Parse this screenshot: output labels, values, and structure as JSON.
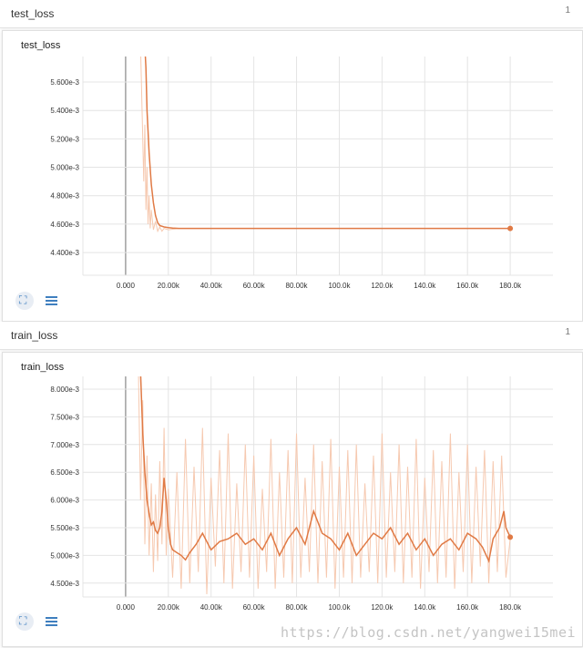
{
  "panels": [
    {
      "title": "test_loss",
      "count": "1",
      "card_title": "test_loss"
    },
    {
      "title": "train_loss",
      "count": "1",
      "card_title": "train_loss"
    }
  ],
  "watermark": "https://blog.csdn.net/yangwei15mei",
  "colors": {
    "line": "#e07a45",
    "raw": "#f6c9b0",
    "grid": "#e4e4e4",
    "axis": "#888888",
    "icon": "#3f7fbf"
  },
  "icons": {
    "fit": "fit-domain-icon",
    "list": "data-selection-list-icon"
  },
  "chart_data": [
    {
      "type": "line",
      "title": "test_loss",
      "xlabel": "",
      "ylabel": "",
      "xlim": [
        -20000,
        200000
      ],
      "ylim": [
        0.00424,
        0.00578
      ],
      "x_ticks": [
        "0.000",
        "20.00k",
        "40.00k",
        "60.00k",
        "80.00k",
        "100.0k",
        "120.0k",
        "140.0k",
        "160.0k",
        "180.0k"
      ],
      "x_tick_values": [
        0,
        20000,
        40000,
        60000,
        80000,
        100000,
        120000,
        140000,
        160000,
        180000
      ],
      "y_ticks": [
        "4.400e-3",
        "4.600e-3",
        "4.800e-3",
        "5.000e-3",
        "5.200e-3",
        "5.400e-3",
        "5.600e-3"
      ],
      "y_tick_values": [
        0.0044,
        0.0046,
        0.0048,
        0.005,
        0.0052,
        0.0054,
        0.0056
      ],
      "grid": true,
      "smoothed": {
        "x": [
          9000,
          9500,
          10000,
          11000,
          12000,
          13000,
          14000,
          15000,
          16000,
          18000,
          20000,
          22000,
          25000,
          30000,
          40000,
          60000,
          80000,
          100000,
          120000,
          140000,
          160000,
          180000
        ],
        "y": [
          0.00585,
          0.0057,
          0.0054,
          0.0051,
          0.00488,
          0.00475,
          0.00466,
          0.00461,
          0.00459,
          0.00458,
          0.004575,
          0.004572,
          0.00457,
          0.00457,
          0.00457,
          0.00457,
          0.00457,
          0.00457,
          0.00457,
          0.00457,
          0.00457,
          0.00457
        ]
      },
      "raw": {
        "x": [
          7000,
          8000,
          8500,
          9000,
          9500,
          10000,
          10500,
          11000,
          11500,
          12000,
          13000,
          14000,
          15000,
          16000,
          17000,
          18000,
          20000,
          25000
        ],
        "y": [
          0.00585,
          0.0052,
          0.0049,
          0.0053,
          0.0047,
          0.005,
          0.0046,
          0.0048,
          0.00457,
          0.0047,
          0.00456,
          0.00462,
          0.00455,
          0.00458,
          0.00455,
          0.00457,
          0.00456,
          0.00457
        ]
      }
    },
    {
      "type": "line",
      "title": "train_loss",
      "xlabel": "",
      "ylabel": "",
      "xlim": [
        -20000,
        200000
      ],
      "ylim": [
        0.00425,
        0.00823
      ],
      "x_ticks": [
        "0.000",
        "20.00k",
        "40.00k",
        "60.00k",
        "80.00k",
        "100.0k",
        "120.0k",
        "140.0k",
        "160.0k",
        "180.0k"
      ],
      "x_tick_values": [
        0,
        20000,
        40000,
        60000,
        80000,
        100000,
        120000,
        140000,
        160000,
        180000
      ],
      "y_ticks": [
        "4.500e-3",
        "5.000e-3",
        "5.500e-3",
        "6.000e-3",
        "6.500e-3",
        "7.000e-3",
        "7.500e-3",
        "8.000e-3"
      ],
      "y_tick_values": [
        0.0045,
        0.005,
        0.0055,
        0.006,
        0.0065,
        0.007,
        0.0075,
        0.008
      ],
      "grid": true,
      "smoothed": {
        "x": [
          7000,
          8000,
          9000,
          10000,
          11000,
          12000,
          13000,
          14000,
          15000,
          16000,
          17000,
          18000,
          19000,
          20000,
          21000,
          22000,
          24000,
          26000,
          28000,
          30000,
          33000,
          36000,
          40000,
          44000,
          48000,
          52000,
          56000,
          60000,
          64000,
          68000,
          72000,
          76000,
          80000,
          84000,
          88000,
          92000,
          96000,
          100000,
          104000,
          108000,
          112000,
          116000,
          120000,
          124000,
          128000,
          132000,
          136000,
          140000,
          144000,
          148000,
          152000,
          156000,
          160000,
          164000,
          167000,
          170000,
          172000,
          175000,
          177000,
          178000,
          180000
        ],
        "y": [
          0.0083,
          0.0072,
          0.0065,
          0.006,
          0.00575,
          0.00555,
          0.0056,
          0.00545,
          0.0054,
          0.0055,
          0.0058,
          0.0064,
          0.006,
          0.0055,
          0.0052,
          0.0051,
          0.00505,
          0.005,
          0.00492,
          0.00505,
          0.0052,
          0.0054,
          0.0051,
          0.00525,
          0.0053,
          0.0054,
          0.0052,
          0.0053,
          0.0051,
          0.0054,
          0.005,
          0.0053,
          0.0055,
          0.0052,
          0.0058,
          0.0054,
          0.0053,
          0.0051,
          0.0054,
          0.005,
          0.0052,
          0.0054,
          0.0053,
          0.0055,
          0.0052,
          0.0054,
          0.0051,
          0.0053,
          0.005,
          0.0052,
          0.0053,
          0.0051,
          0.0054,
          0.0053,
          0.00515,
          0.0049,
          0.0053,
          0.0055,
          0.0058,
          0.0055,
          0.00533
        ]
      },
      "raw": {
        "x": [
          6000,
          7000,
          8000,
          9000,
          10000,
          11000,
          12000,
          13000,
          14000,
          15000,
          16000,
          17000,
          18000,
          19000,
          20000,
          22000,
          24000,
          26000,
          28000,
          30000,
          32000,
          34000,
          36000,
          38000,
          40000,
          42000,
          44000,
          46000,
          48000,
          50000,
          52000,
          54000,
          56000,
          58000,
          60000,
          62000,
          64000,
          66000,
          68000,
          70000,
          72000,
          74000,
          76000,
          78000,
          80000,
          82000,
          84000,
          86000,
          88000,
          90000,
          92000,
          94000,
          96000,
          98000,
          100000,
          102000,
          104000,
          106000,
          108000,
          110000,
          112000,
          114000,
          116000,
          118000,
          120000,
          122000,
          124000,
          126000,
          128000,
          130000,
          132000,
          134000,
          136000,
          138000,
          140000,
          142000,
          144000,
          146000,
          148000,
          150000,
          152000,
          154000,
          156000,
          158000,
          160000,
          162000,
          164000,
          166000,
          168000,
          170000,
          172000,
          174000,
          176000,
          178000,
          180000
        ],
        "y": [
          0.0083,
          0.006,
          0.0078,
          0.0052,
          0.0068,
          0.005,
          0.0063,
          0.0047,
          0.0061,
          0.0049,
          0.0067,
          0.0052,
          0.0073,
          0.005,
          0.0062,
          0.0046,
          0.0065,
          0.0044,
          0.0071,
          0.0045,
          0.0066,
          0.0047,
          0.0073,
          0.0043,
          0.0064,
          0.0048,
          0.0069,
          0.0045,
          0.0072,
          0.0044,
          0.0063,
          0.0047,
          0.007,
          0.0046,
          0.0068,
          0.0044,
          0.0062,
          0.0047,
          0.0071,
          0.0044,
          0.0065,
          0.0046,
          0.0069,
          0.0045,
          0.0072,
          0.0046,
          0.0064,
          0.0047,
          0.007,
          0.0045,
          0.0067,
          0.0046,
          0.0071,
          0.0044,
          0.0066,
          0.0046,
          0.0069,
          0.0045,
          0.007,
          0.0046,
          0.0063,
          0.0047,
          0.0068,
          0.0045,
          0.0072,
          0.0046,
          0.0065,
          0.0047,
          0.007,
          0.0045,
          0.0066,
          0.0046,
          0.0071,
          0.0044,
          0.0064,
          0.0047,
          0.0069,
          0.0045,
          0.0067,
          0.0046,
          0.0072,
          0.0044,
          0.0065,
          0.0047,
          0.007,
          0.0045,
          0.0066,
          0.0048,
          0.0069,
          0.0045,
          0.0067,
          0.0047,
          0.0068,
          0.0046,
          0.0053
        ]
      }
    }
  ]
}
